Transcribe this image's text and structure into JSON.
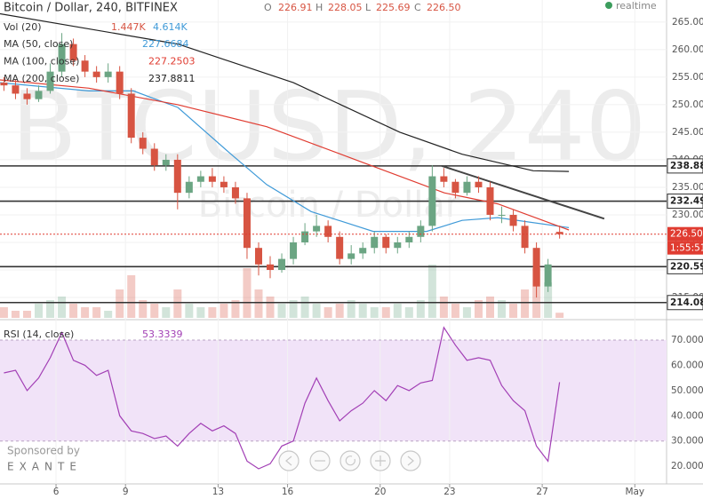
{
  "header": {
    "symbol": "Bitcoin / Dollar, 240, BITFINEX",
    "ohlc": [
      {
        "key": "O",
        "value": "226.91"
      },
      {
        "key": "H",
        "value": "228.05"
      },
      {
        "key": "L",
        "value": "225.69"
      },
      {
        "key": "C",
        "value": "226.50"
      }
    ],
    "status": "realtime",
    "sponsor": "Sponsored by",
    "sponsor_name": "EXANTE"
  },
  "chart_data": [
    {
      "type": "candlestick",
      "watermark": "BTCUSD, 240",
      "watermark_sub": "Bitcoin / Dollar",
      "up_color": "#6ba583",
      "down_color": "#d75442",
      "grid": true,
      "xlim": [
        3.58,
        32.37
      ],
      "ylim": [
        211.3,
        269.0
      ],
      "yticks": [
        {
          "value": 215,
          "label": "215.00"
        },
        {
          "value": 220,
          "label": "220.00"
        },
        {
          "value": 225,
          "label": "225.00"
        },
        {
          "value": 230,
          "label": "230.00"
        },
        {
          "value": 235,
          "label": "235.00"
        },
        {
          "value": 240,
          "label": "240.00"
        },
        {
          "value": 245,
          "label": "245.00"
        },
        {
          "value": 250,
          "label": "250.00"
        },
        {
          "value": 255,
          "label": "255.00"
        },
        {
          "value": 260,
          "label": "260.00"
        },
        {
          "value": 265,
          "label": "265.00"
        }
      ],
      "x": [
        3.75,
        4.25,
        4.75,
        5.25,
        5.75,
        6.25,
        6.75,
        7.25,
        7.75,
        8.25,
        8.75,
        9.25,
        9.75,
        10.25,
        10.75,
        11.25,
        11.75,
        12.25,
        12.75,
        13.25,
        13.75,
        14.25,
        14.75,
        15.25,
        15.75,
        16.25,
        16.75,
        17.25,
        17.75,
        18.25,
        18.75,
        19.25,
        19.75,
        20.25,
        20.75,
        21.25,
        21.75,
        22.25,
        22.75,
        23.25,
        23.75,
        24.25,
        24.75,
        25.25,
        25.75,
        26.25,
        26.75,
        27.25,
        27.75
      ],
      "open": [
        254,
        253.5,
        252,
        251,
        252.5,
        256,
        261,
        258,
        256,
        255,
        256,
        252,
        244,
        242,
        239,
        240,
        234,
        236,
        237,
        236,
        235,
        233,
        224,
        221,
        220,
        222,
        225,
        227,
        228,
        226,
        222,
        223,
        224,
        226,
        224,
        225,
        226,
        228,
        237,
        236,
        234,
        236,
        235,
        230,
        230,
        228,
        224,
        217,
        226.91
      ],
      "high": [
        255,
        254.5,
        253,
        253.5,
        257.5,
        263,
        262,
        259,
        257,
        257.5,
        257,
        253,
        245,
        243,
        241,
        241,
        237,
        238,
        238.5,
        237,
        236,
        234,
        225,
        222.5,
        223,
        226,
        228.5,
        230,
        229,
        227,
        224.5,
        225,
        227,
        226.5,
        226,
        227,
        229,
        239,
        238.5,
        236.5,
        237,
        237,
        236,
        231.5,
        231,
        229,
        225,
        222,
        228.05
      ],
      "low": [
        252.5,
        251,
        250,
        250.5,
        252,
        255,
        257,
        255,
        254,
        254,
        251,
        243,
        241,
        238,
        238,
        231,
        233,
        235,
        235,
        234,
        232,
        222,
        219,
        218.5,
        219.5,
        221,
        224.5,
        226,
        225,
        221,
        221,
        222,
        223,
        223,
        223,
        224,
        225,
        227,
        235,
        233,
        233.5,
        234,
        229,
        228.5,
        227,
        223,
        215,
        216,
        225.69
      ],
      "close": [
        253.5,
        252,
        251,
        252.5,
        256,
        261,
        258,
        256,
        255,
        256,
        252,
        244,
        242,
        239,
        240,
        234,
        236,
        237,
        236,
        235,
        233,
        224,
        221,
        220,
        222,
        225,
        227,
        228,
        226,
        222,
        223,
        224,
        226,
        224,
        225,
        226,
        228,
        237,
        236,
        234,
        236,
        235,
        230,
        230,
        228,
        224,
        217,
        221,
        226.5
      ],
      "volume_name": "Vol (20)",
      "volume_labels": [
        "1.447K",
        "4.614K"
      ],
      "volume_label_colors": [
        "#d75442",
        "#3f9ad8"
      ],
      "volume_lim": [
        0,
        25
      ],
      "volume": [
        3,
        2,
        2,
        4,
        5,
        6,
        4,
        3,
        3,
        2,
        8,
        12,
        5,
        4,
        3,
        8,
        4,
        3,
        3,
        4,
        5,
        14,
        8,
        6,
        4,
        5,
        6,
        4,
        3,
        4,
        5,
        4,
        3,
        3,
        4,
        3,
        5,
        15,
        6,
        4,
        3,
        5,
        6,
        5,
        4,
        8,
        14,
        10,
        1.447
      ],
      "series": [
        {
          "name": "MA (50, close)",
          "color": "#3f9ad8",
          "legend_value": "227.6684",
          "x": [
            3.58,
            7.42,
            9.34,
            11.26,
            13.56,
            15.1,
            17.02,
            19.7,
            22.01,
            23.54,
            25.08,
            28.15
          ],
          "values": [
            254,
            252.5,
            252.5,
            249.5,
            241,
            235.5,
            230.6,
            227,
            227,
            229,
            229.5,
            227.6684
          ]
        },
        {
          "name": "MA (100, close)",
          "color": "#e03c31",
          "legend_value": "227.2503",
          "x": [
            3.58,
            7.42,
            11.26,
            15.1,
            18.94,
            22.77,
            25.08,
            28.15
          ],
          "values": [
            254.5,
            253,
            250,
            246,
            240,
            234,
            232,
            227.2503
          ]
        },
        {
          "name": "MA (200, close)",
          "color": "#222222",
          "legend_value": "237.8811",
          "x": [
            3.58,
            11.26,
            16.25,
            20.85,
            23.54,
            26.61,
            28.15
          ],
          "values": [
            266.5,
            261,
            254,
            245,
            241,
            238,
            237.8811
          ]
        }
      ],
      "levels": [
        238.88,
        232.49,
        220.59,
        214.08
      ],
      "last_price": {
        "value": 226.5,
        "label": "226.50"
      },
      "countdown": "1:55:51",
      "last_color": "#e03c31",
      "trendline": {
        "x": [
          22.66,
          29.68
        ],
        "values": [
          238.9,
          229.3
        ],
        "color": "#444444"
      }
    },
    {
      "type": "line",
      "xlim": [
        3.58,
        32.37
      ],
      "ylim": [
        13,
        77.4
      ],
      "yticks": [
        {
          "value": 20,
          "label": "20.0000"
        },
        {
          "value": 30,
          "label": "30.0000"
        },
        {
          "value": 40,
          "label": "40.0000"
        },
        {
          "value": 50,
          "label": "50.0000"
        },
        {
          "value": 60,
          "label": "60.0000"
        },
        {
          "value": 70,
          "label": "70.0000"
        }
      ],
      "xticks": [
        6,
        9,
        13,
        16,
        20,
        23,
        27,
        {
          "value": 31,
          "label": "May"
        }
      ],
      "band": [
        30,
        70
      ],
      "band_color": "#f1e3f8",
      "x": [
        3.75,
        4.25,
        4.75,
        5.25,
        5.75,
        6.25,
        6.75,
        7.25,
        7.75,
        8.25,
        8.75,
        9.25,
        9.75,
        10.25,
        10.75,
        11.25,
        11.75,
        12.25,
        12.75,
        13.25,
        13.75,
        14.25,
        14.75,
        15.25,
        15.75,
        16.25,
        16.75,
        17.25,
        17.75,
        18.25,
        18.75,
        19.25,
        19.75,
        20.25,
        20.75,
        21.25,
        21.75,
        22.25,
        22.75,
        23.25,
        23.75,
        24.25,
        24.75,
        25.25,
        25.75,
        26.25,
        26.75,
        27.25,
        27.75
      ],
      "series": [
        {
          "name": "RSI (14, close)",
          "color": "#a23fb5",
          "legend_value": "53.3339",
          "values": [
            57,
            58,
            50,
            55,
            63,
            73,
            62,
            60,
            56,
            58,
            40,
            34,
            33,
            31,
            32,
            28,
            33,
            37,
            34,
            36,
            33,
            22,
            19,
            21,
            28,
            30,
            45,
            55,
            46,
            38,
            42,
            45,
            50,
            46,
            52,
            50,
            53,
            54,
            75,
            68,
            62,
            63,
            62,
            52,
            46,
            42,
            28,
            22,
            53.3339
          ]
        }
      ]
    }
  ]
}
